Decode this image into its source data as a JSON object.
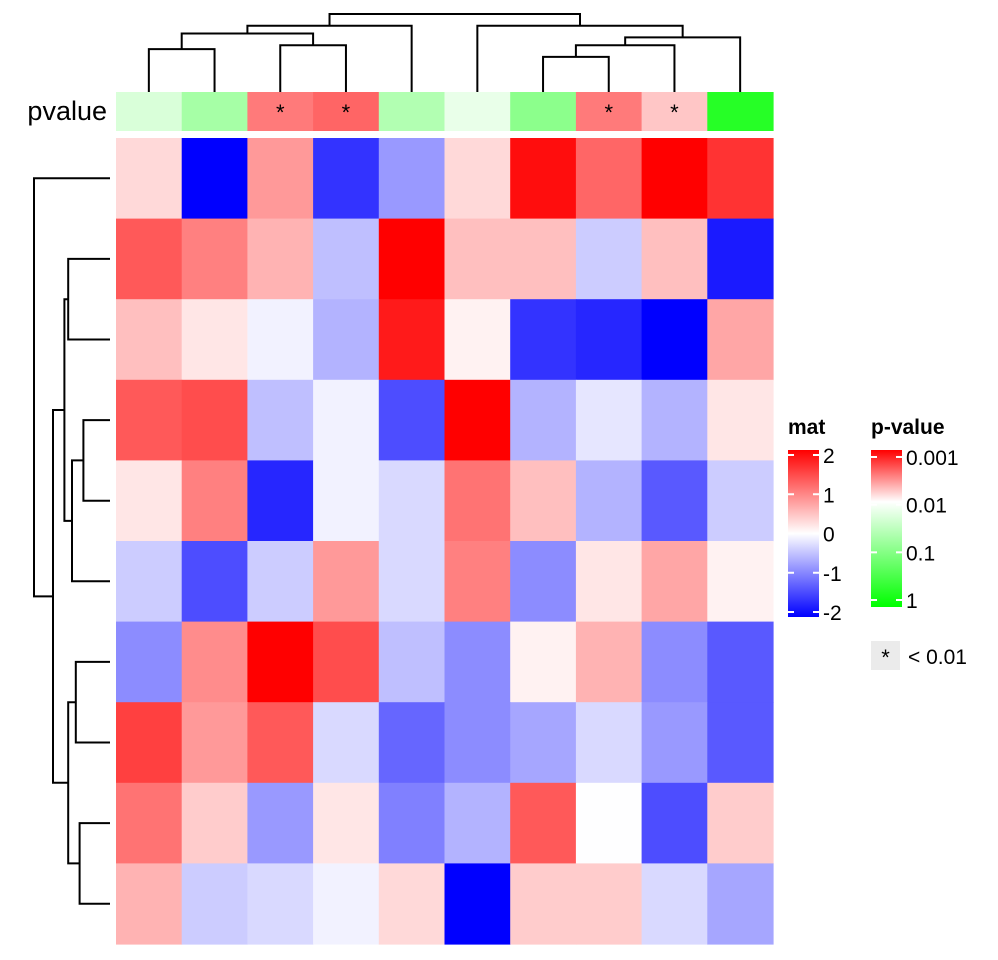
{
  "chart_data": {
    "type": "heatmap",
    "title": "",
    "annotation": {
      "label": "pvalue",
      "pvalues": [
        0.02,
        0.05,
        0.003,
        0.0025,
        0.04,
        0.015,
        0.08,
        0.003,
        0.006,
        0.5
      ],
      "stars": [
        "",
        "",
        "*",
        "*",
        "",
        "",
        "",
        "*",
        "*",
        ""
      ]
    },
    "matrix": [
      [
        0.3,
        -2.0,
        0.8,
        -1.6,
        -0.8,
        0.3,
        1.9,
        1.2,
        2.0,
        1.6
      ],
      [
        1.3,
        1.0,
        0.6,
        -0.5,
        2.3,
        0.5,
        0.5,
        -0.4,
        0.5,
        -1.8
      ],
      [
        0.5,
        0.2,
        -0.1,
        -0.6,
        1.8,
        0.1,
        -1.6,
        -1.7,
        -2.3,
        0.7
      ],
      [
        1.3,
        1.4,
        -0.5,
        -0.1,
        -1.4,
        2.1,
        -0.6,
        -0.2,
        -0.6,
        0.2
      ],
      [
        0.2,
        1.0,
        -1.7,
        -0.1,
        -0.3,
        1.1,
        0.5,
        -0.6,
        -1.3,
        -0.4
      ],
      [
        -0.4,
        -1.4,
        -0.4,
        0.8,
        -0.3,
        1.0,
        -0.9,
        0.2,
        0.7,
        0.1
      ],
      [
        -0.9,
        0.9,
        2.3,
        1.4,
        -0.5,
        -0.9,
        0.1,
        0.6,
        -0.9,
        -1.3
      ],
      [
        1.5,
        0.8,
        1.3,
        -0.3,
        -1.2,
        -0.9,
        -0.7,
        -0.3,
        -0.8,
        -1.3
      ],
      [
        1.1,
        0.4,
        -0.8,
        0.2,
        -1.0,
        -0.6,
        1.3,
        -0.01,
        -1.4,
        0.4
      ],
      [
        0.6,
        -0.4,
        -0.3,
        -0.1,
        0.3,
        -2.3,
        0.4,
        0.4,
        -0.3,
        -0.7
      ]
    ],
    "col_dendrogram": {
      "leaf_heights": [
        0.2,
        0.2,
        0.2,
        0.2,
        0.45,
        0.5,
        0.2,
        0.2,
        0.2,
        0.4
      ],
      "merges": [
        {
          "a": "c1",
          "b": "c2",
          "h": 0.55
        },
        {
          "a": "c3",
          "b": "c4",
          "h": 0.6
        },
        {
          "a": "m1",
          "b": "m2",
          "h": 0.75
        },
        {
          "a": "m3",
          "b": "c5",
          "h": 0.85
        },
        {
          "a": "c7",
          "b": "c8",
          "h": 0.45
        },
        {
          "a": "m5",
          "b": "c9",
          "h": 0.6
        },
        {
          "a": "m6",
          "b": "c10",
          "h": 0.7
        },
        {
          "a": "c6",
          "b": "m7",
          "h": 0.85
        },
        {
          "a": "m4",
          "b": "m8",
          "h": 1.0
        }
      ]
    },
    "row_dendrogram": {
      "merges": [
        {
          "a": "r2",
          "b": "r3",
          "h": 0.55
        },
        {
          "a": "r4",
          "b": "r5",
          "h": 0.35
        },
        {
          "a": "m2",
          "b": "r6",
          "h": 0.5
        },
        {
          "a": "m1",
          "b": "m3",
          "h": 0.6
        },
        {
          "a": "r7",
          "b": "r8",
          "h": 0.45
        },
        {
          "a": "r9",
          "b": "r10",
          "h": 0.4
        },
        {
          "a": "m5",
          "b": "m6",
          "h": 0.55
        },
        {
          "a": "m4",
          "b": "m7",
          "h": 0.75
        },
        {
          "a": "r1",
          "b": "m8",
          "h": 1.0
        }
      ]
    },
    "colors": {
      "mat_high": "#ff0000",
      "mat_mid": "#ffffff",
      "mat_low": "#0000ff",
      "pv_sig": "#ff0000",
      "pv_mid": "#ffffff",
      "pv_nonsig": "#00ff00",
      "star_box": "#ebebeb"
    },
    "legends": {
      "mat": {
        "title": "mat",
        "ticks": [
          {
            "label": "2",
            "value": 2
          },
          {
            "label": "1",
            "value": 1
          },
          {
            "label": "0",
            "value": 0
          },
          {
            "label": "-1",
            "value": -1
          },
          {
            "label": "-2",
            "value": -2
          }
        ]
      },
      "pvalue": {
        "title": "p-value",
        "ticks": [
          {
            "label": "0.001",
            "value": 0.001
          },
          {
            "label": "0.01",
            "value": 0.01
          },
          {
            "label": "0.1",
            "value": 0.1
          },
          {
            "label": "1",
            "value": 1
          }
        ]
      },
      "star": {
        "symbol": "*",
        "label": "< 0.01"
      }
    }
  }
}
